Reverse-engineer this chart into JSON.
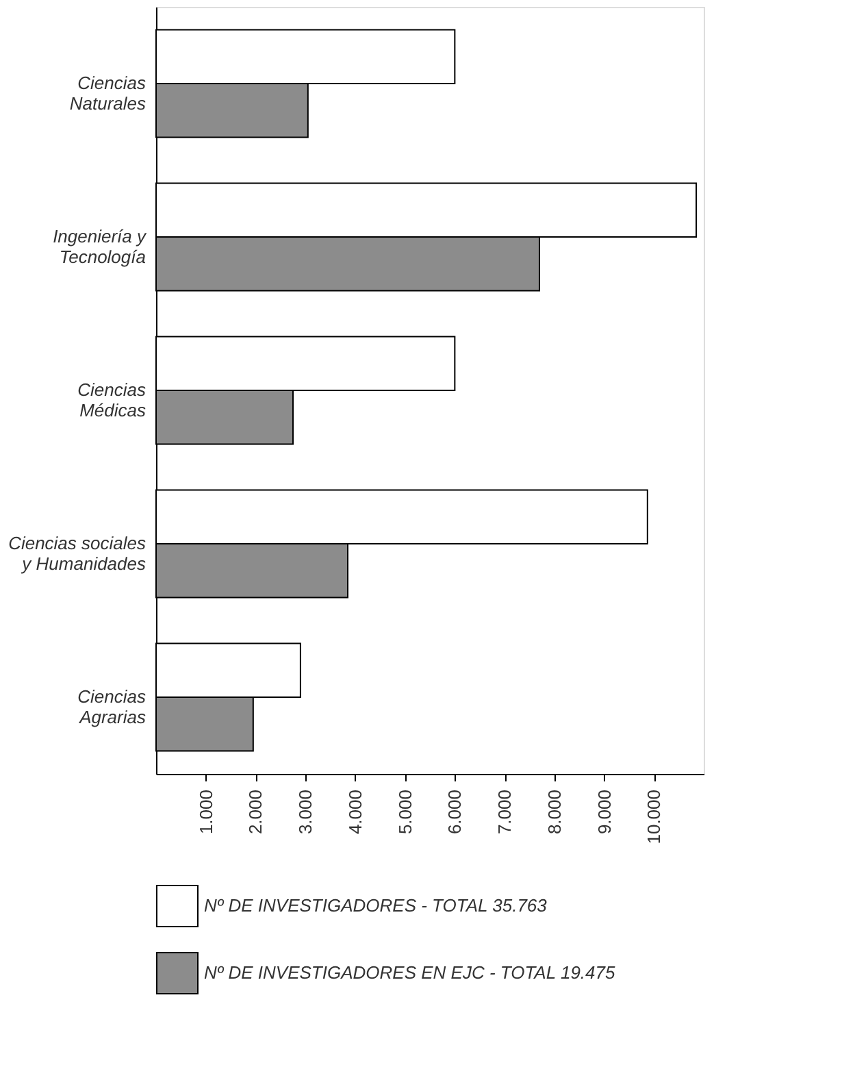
{
  "chart_data": {
    "type": "bar",
    "orientation": "horizontal",
    "categories": [
      "Ciencias\nNaturales",
      "Ingeniería y\nTecnología",
      "Ciencias\nMédicas",
      "Ciencias sociales\ny Humanidades",
      "Ciencias\nAgrarias"
    ],
    "series": [
      {
        "name": "Nº DE INVESTIGADORES - TOTAL 35.763",
        "color": "#ffffff",
        "values": [
          6000,
          10850,
          6000,
          9870,
          2900
        ]
      },
      {
        "name": "Nº DE INVESTIGADORES EN EJC - TOTAL 19.475",
        "color": "#8c8c8c",
        "values": [
          3050,
          7700,
          2750,
          3850,
          1950
        ]
      }
    ],
    "xlim": [
      0,
      11000
    ],
    "xticks": [
      {
        "value": 1000,
        "label": "1.000"
      },
      {
        "value": 2000,
        "label": "2.000"
      },
      {
        "value": 3000,
        "label": "3.000"
      },
      {
        "value": 4000,
        "label": "4.000"
      },
      {
        "value": 5000,
        "label": "5.000"
      },
      {
        "value": 6000,
        "label": "6.000"
      },
      {
        "value": 7000,
        "label": "7.000"
      },
      {
        "value": 8000,
        "label": "8.000"
      },
      {
        "value": 9000,
        "label": "9.000"
      },
      {
        "value": 10000,
        "label": "10.000"
      }
    ],
    "grid": false,
    "legend": "bottom"
  }
}
